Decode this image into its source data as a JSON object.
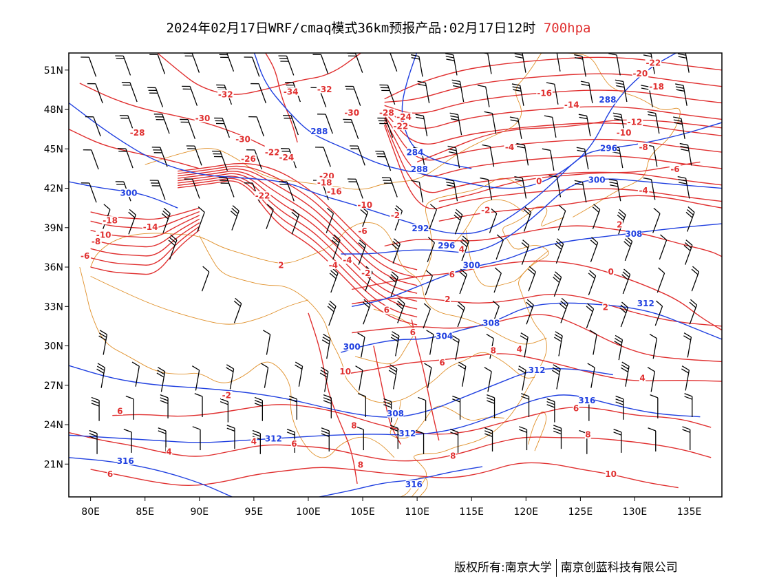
{
  "title": {
    "prefix": "2024年02月17日WRF/cmaq模式36km预报产品:02月17日12时",
    "level": "700hpa"
  },
  "footer": {
    "owner": "版权所有:南京大学",
    "partner": "南京创蓝科技有限公司"
  },
  "colors": {
    "temperature": "#e03030",
    "height": "#2040e0",
    "border": "#e0902a",
    "barb": "#000000",
    "frame": "#000000"
  },
  "axes": {
    "lon_range": [
      78,
      138
    ],
    "lat_range": [
      18.5,
      52.3
    ],
    "x_ticks": [
      "80E",
      "85E",
      "90E",
      "95E",
      "100E",
      "105E",
      "110E",
      "115E",
      "120E",
      "125E",
      "130E",
      "135E"
    ],
    "x_tick_values": [
      80,
      85,
      90,
      95,
      100,
      105,
      110,
      115,
      120,
      125,
      130,
      135
    ],
    "y_ticks": [
      "51N",
      "48N",
      "45N",
      "42N",
      "39N",
      "36N",
      "33N",
      "30N",
      "27N",
      "24N",
      "21N"
    ],
    "y_tick_values": [
      51,
      48,
      45,
      42,
      39,
      36,
      33,
      30,
      27,
      24,
      21
    ]
  },
  "height_labels": [
    {
      "text": "288",
      "lon": 101.0,
      "lat": 46.2
    },
    {
      "text": "284",
      "lon": 109.8,
      "lat": 44.6
    },
    {
      "text": "288",
      "lon": 110.2,
      "lat": 43.3
    },
    {
      "text": "292",
      "lon": 110.3,
      "lat": 38.8
    },
    {
      "text": "296",
      "lon": 112.7,
      "lat": 37.5
    },
    {
      "text": "300",
      "lon": 115.0,
      "lat": 36.0
    },
    {
      "text": "300",
      "lon": 83.5,
      "lat": 41.5
    },
    {
      "text": "300",
      "lon": 104.0,
      "lat": 29.8
    },
    {
      "text": "304",
      "lon": 112.5,
      "lat": 30.6
    },
    {
      "text": "308",
      "lon": 116.8,
      "lat": 31.6
    },
    {
      "text": "308",
      "lon": 108.0,
      "lat": 24.7
    },
    {
      "text": "312",
      "lon": 96.8,
      "lat": 22.8
    },
    {
      "text": "312",
      "lon": 109.1,
      "lat": 23.2
    },
    {
      "text": "312",
      "lon": 121.0,
      "lat": 28.0
    },
    {
      "text": "316",
      "lon": 83.2,
      "lat": 21.1
    },
    {
      "text": "316",
      "lon": 109.7,
      "lat": 19.3
    },
    {
      "text": "316",
      "lon": 125.6,
      "lat": 25.7
    },
    {
      "text": "296",
      "lon": 127.6,
      "lat": 44.9
    },
    {
      "text": "300",
      "lon": 126.5,
      "lat": 42.5
    },
    {
      "text": "308",
      "lon": 129.9,
      "lat": 38.4
    },
    {
      "text": "312",
      "lon": 131.0,
      "lat": 33.1
    },
    {
      "text": "288",
      "lon": 127.5,
      "lat": 48.6
    }
  ],
  "temperature_labels": [
    {
      "text": "-32",
      "lon": 92.4,
      "lat": 49.0
    },
    {
      "text": "-34",
      "lon": 98.4,
      "lat": 49.2
    },
    {
      "text": "-32",
      "lon": 101.5,
      "lat": 49.4
    },
    {
      "text": "-30",
      "lon": 104.0,
      "lat": 47.6
    },
    {
      "text": "-30",
      "lon": 90.3,
      "lat": 47.2
    },
    {
      "text": "-28",
      "lon": 84.3,
      "lat": 46.1
    },
    {
      "text": "-30",
      "lon": 94.0,
      "lat": 45.6
    },
    {
      "text": "-26",
      "lon": 94.5,
      "lat": 44.1
    },
    {
      "text": "-22",
      "lon": 96.7,
      "lat": 44.6
    },
    {
      "text": "-24",
      "lon": 98.0,
      "lat": 44.2
    },
    {
      "text": "-20",
      "lon": 101.7,
      "lat": 42.8
    },
    {
      "text": "-18",
      "lon": 101.5,
      "lat": 42.3
    },
    {
      "text": "-16",
      "lon": 102.4,
      "lat": 41.6
    },
    {
      "text": "-22",
      "lon": 95.8,
      "lat": 41.3
    },
    {
      "text": "-18",
      "lon": 81.8,
      "lat": 39.4
    },
    {
      "text": "-14",
      "lon": 85.5,
      "lat": 38.9
    },
    {
      "text": "-10",
      "lon": 81.2,
      "lat": 38.3
    },
    {
      "text": "-8",
      "lon": 80.5,
      "lat": 37.8
    },
    {
      "text": "-6",
      "lon": 79.5,
      "lat": 36.7
    },
    {
      "text": "-10",
      "lon": 105.2,
      "lat": 40.6
    },
    {
      "text": "-6",
      "lon": 105.0,
      "lat": 38.6
    },
    {
      "text": "-4",
      "lon": 103.6,
      "lat": 36.4
    },
    {
      "text": "-4",
      "lon": 102.3,
      "lat": 36.0
    },
    {
      "text": "-2",
      "lon": 105.3,
      "lat": 35.4
    },
    {
      "text": "-2",
      "lon": 108.0,
      "lat": 39.8
    },
    {
      "text": "-28",
      "lon": 107.2,
      "lat": 47.6
    },
    {
      "text": "-24",
      "lon": 108.8,
      "lat": 47.3
    },
    {
      "text": "-22",
      "lon": 108.5,
      "lat": 46.6
    },
    {
      "text": "-16",
      "lon": 121.7,
      "lat": 49.1
    },
    {
      "text": "-14",
      "lon": 124.2,
      "lat": 48.2
    },
    {
      "text": "-22",
      "lon": 131.7,
      "lat": 51.4
    },
    {
      "text": "-20",
      "lon": 130.5,
      "lat": 50.6
    },
    {
      "text": "-18",
      "lon": 132.0,
      "lat": 49.6
    },
    {
      "text": "-12",
      "lon": 130.0,
      "lat": 46.9
    },
    {
      "text": "-10",
      "lon": 129.0,
      "lat": 46.1
    },
    {
      "text": "-8",
      "lon": 130.8,
      "lat": 45.0
    },
    {
      "text": "-6",
      "lon": 133.7,
      "lat": 43.3
    },
    {
      "text": "-4",
      "lon": 130.8,
      "lat": 41.7
    },
    {
      "text": "-4",
      "lon": 118.5,
      "lat": 45.0
    },
    {
      "text": "-2",
      "lon": 116.3,
      "lat": 40.2
    },
    {
      "text": "0",
      "lon": 121.2,
      "lat": 42.4
    },
    {
      "text": "2",
      "lon": 128.6,
      "lat": 39.1
    },
    {
      "text": "4",
      "lon": 114.1,
      "lat": 37.2
    },
    {
      "text": "0",
      "lon": 127.8,
      "lat": 35.5
    },
    {
      "text": "6",
      "lon": 113.2,
      "lat": 35.3
    },
    {
      "text": "2",
      "lon": 112.8,
      "lat": 33.4
    },
    {
      "text": "6",
      "lon": 107.2,
      "lat": 32.6
    },
    {
      "text": "2",
      "lon": 127.3,
      "lat": 32.8
    },
    {
      "text": "6",
      "lon": 109.6,
      "lat": 30.9
    },
    {
      "text": "4",
      "lon": 119.4,
      "lat": 29.6
    },
    {
      "text": "8",
      "lon": 117.0,
      "lat": 29.5
    },
    {
      "text": "6",
      "lon": 112.3,
      "lat": 28.6
    },
    {
      "text": "10",
      "lon": 103.4,
      "lat": 27.9
    },
    {
      "text": "-2",
      "lon": 92.5,
      "lat": 26.1
    },
    {
      "text": "6",
      "lon": 82.7,
      "lat": 24.9
    },
    {
      "text": "6",
      "lon": 98.7,
      "lat": 22.4
    },
    {
      "text": "4",
      "lon": 95.0,
      "lat": 22.6
    },
    {
      "text": "4",
      "lon": 87.2,
      "lat": 21.8
    },
    {
      "text": "8",
      "lon": 104.2,
      "lat": 23.8
    },
    {
      "text": "8",
      "lon": 104.8,
      "lat": 20.8
    },
    {
      "text": "8",
      "lon": 113.3,
      "lat": 21.5
    },
    {
      "text": "6",
      "lon": 81.8,
      "lat": 20.1
    },
    {
      "text": "6",
      "lon": 124.6,
      "lat": 25.1
    },
    {
      "text": "8",
      "lon": 125.7,
      "lat": 23.1
    },
    {
      "text": "10",
      "lon": 127.8,
      "lat": 20.1
    },
    {
      "text": "4",
      "lon": 130.7,
      "lat": 27.4
    },
    {
      "text": "2",
      "lon": 97.5,
      "lat": 36.0
    }
  ]
}
